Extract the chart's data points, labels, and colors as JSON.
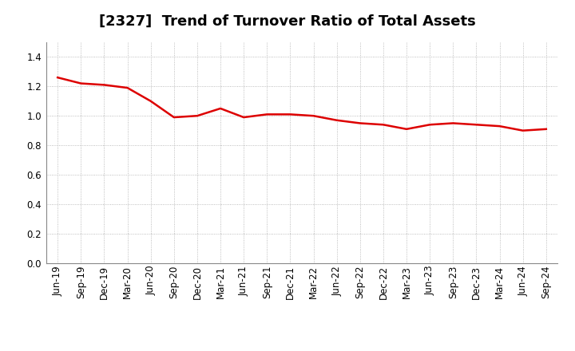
{
  "title": "[2327]  Trend of Turnover Ratio of Total Assets",
  "x_labels": [
    "Jun-19",
    "Sep-19",
    "Dec-19",
    "Mar-20",
    "Jun-20",
    "Sep-20",
    "Dec-20",
    "Mar-21",
    "Jun-21",
    "Sep-21",
    "Dec-21",
    "Mar-22",
    "Jun-22",
    "Sep-22",
    "Dec-22",
    "Mar-23",
    "Jun-23",
    "Sep-23",
    "Dec-23",
    "Mar-24",
    "Jun-24",
    "Sep-24"
  ],
  "values": [
    1.26,
    1.22,
    1.21,
    1.19,
    1.1,
    0.99,
    1.0,
    1.05,
    0.99,
    1.01,
    1.01,
    1.0,
    0.97,
    0.95,
    0.94,
    0.91,
    0.94,
    0.95,
    0.94,
    0.93,
    0.9,
    0.91
  ],
  "line_color": "#dd0000",
  "line_width": 1.8,
  "ylim": [
    0.0,
    1.5
  ],
  "yticks": [
    0.0,
    0.2,
    0.4,
    0.6,
    0.8,
    1.0,
    1.2,
    1.4
  ],
  "background_color": "#ffffff",
  "plot_bg_color": "#ffffff",
  "grid_color": "#aaaaaa",
  "title_fontsize": 13,
  "tick_fontsize": 8.5
}
